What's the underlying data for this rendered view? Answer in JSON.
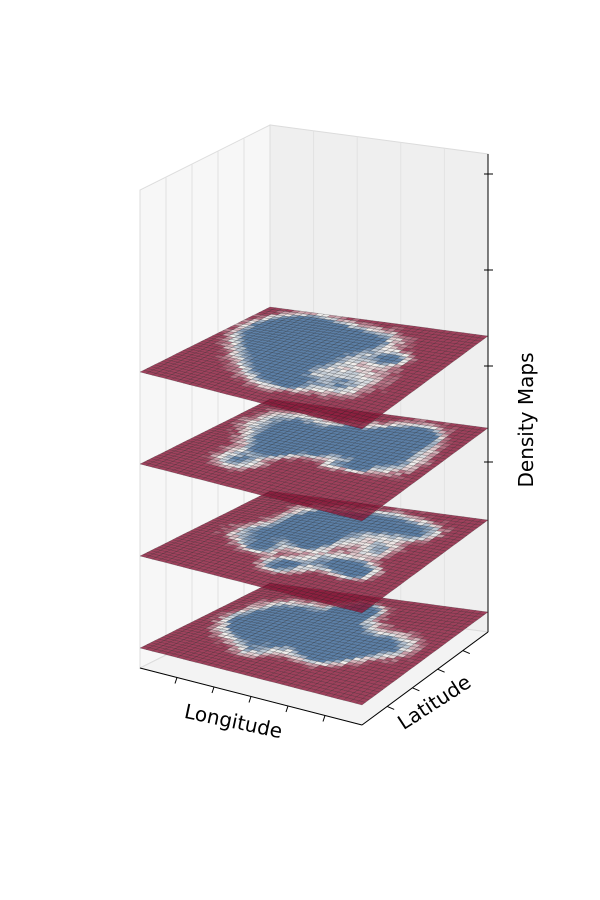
{
  "chart_data": {
    "type": "heatmap",
    "subtype": "stacked-3d-surface",
    "title": "",
    "xlabel": "Longitude",
    "ylabel": "Latitude",
    "zlabel": "Density Maps",
    "layers": 4,
    "grid_size": [
      36,
      36
    ],
    "colormap": "RdBu",
    "grid": true,
    "ticks": {
      "x_count": 5,
      "y_count": 4,
      "z_count": 4
    },
    "colors": {
      "high": "#8b1a3a",
      "mid": "#f2efec",
      "low": "#3b6595"
    }
  }
}
